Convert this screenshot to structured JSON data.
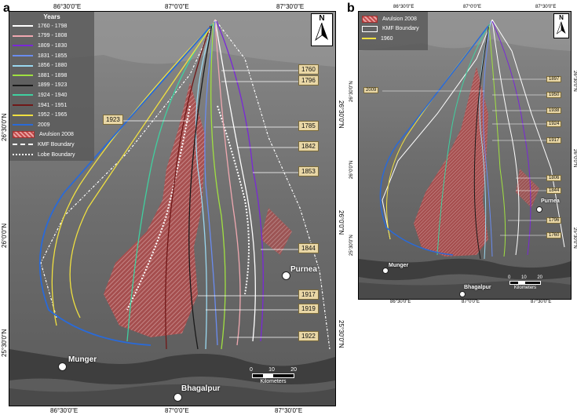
{
  "panel_a": {
    "letter": "a",
    "top_labels": [
      "86°30'0\"E",
      "87°0'0\"E",
      "87°30'0\"E"
    ],
    "bottom_labels": [
      "86°30'0\"E",
      "87°0'0\"E",
      "87°30'0\"E"
    ],
    "left_labels": [
      "26°30'0\"N",
      "26°0'0\"N",
      "25°30'0\"N"
    ],
    "right_labels": [
      "26°30'0\"N",
      "26°0'0\"N",
      "25°30'0\"N"
    ],
    "legend": {
      "title": "Years",
      "items": [
        {
          "label": "1760 - 1798",
          "color": "#ffffff"
        },
        {
          "label": "1799 - 1808",
          "color": "#f0a8b0"
        },
        {
          "label": "1809 - 1830",
          "color": "#7a28d8"
        },
        {
          "label": "1831 - 1855",
          "color": "#6a8cf0"
        },
        {
          "label": "1856 - 1880",
          "color": "#9ad8f0"
        },
        {
          "label": "1881 - 1898",
          "color": "#a0e040"
        },
        {
          "label": "1899 - 1923",
          "color": "#1a1a1a"
        },
        {
          "label": "1924 - 1940",
          "color": "#40d0a0"
        },
        {
          "label": "1941 - 1951",
          "color": "#701818"
        },
        {
          "label": "1952 - 1965",
          "color": "#f0e040"
        },
        {
          "label": "2009",
          "color": "#2a6ad8"
        }
      ],
      "avulsion": "Avulsion 2008",
      "kmf": "KMF Boundary",
      "lobe": "Lobe Boundary"
    },
    "year_tags": [
      "1760",
      "1796",
      "1923",
      "1785",
      "1842",
      "1853",
      "1844",
      "1917",
      "1919",
      "1922"
    ],
    "towns": [
      "Purnea",
      "Munger",
      "Bhagalpur"
    ],
    "north": "N",
    "scale_ticks": [
      "0",
      "10",
      "20"
    ],
    "scale_unit": "Kilometers"
  },
  "panel_b": {
    "letter": "b",
    "top_labels": [
      "86°30'0\"E",
      "87°0'0\"E",
      "87°30'0\"E"
    ],
    "bottom_labels": [
      "86°30'0\"E",
      "87°0'0\"E",
      "87°30'0\"E"
    ],
    "left_labels": [
      "26°30'0\"N",
      "26°0'0\"N",
      "25°30'0\"N"
    ],
    "right_labels": [
      "26°30'0\"N",
      "26°0'0\"N",
      "25°30'0\"N"
    ],
    "legend": {
      "avulsion": "Avulsion 2008",
      "kmf": "KMF Boundary",
      "year": "1960"
    },
    "year_tags": [
      "2009",
      "1897",
      "1950",
      "1938",
      "1924",
      "1917",
      "1806",
      "1844",
      "1796",
      "1760"
    ],
    "towns": [
      "Purnea",
      "Munger",
      "Bhagalpur"
    ],
    "north": "N",
    "scale_ticks": [
      "0",
      "10",
      "20"
    ],
    "scale_unit": "Kilometers"
  }
}
